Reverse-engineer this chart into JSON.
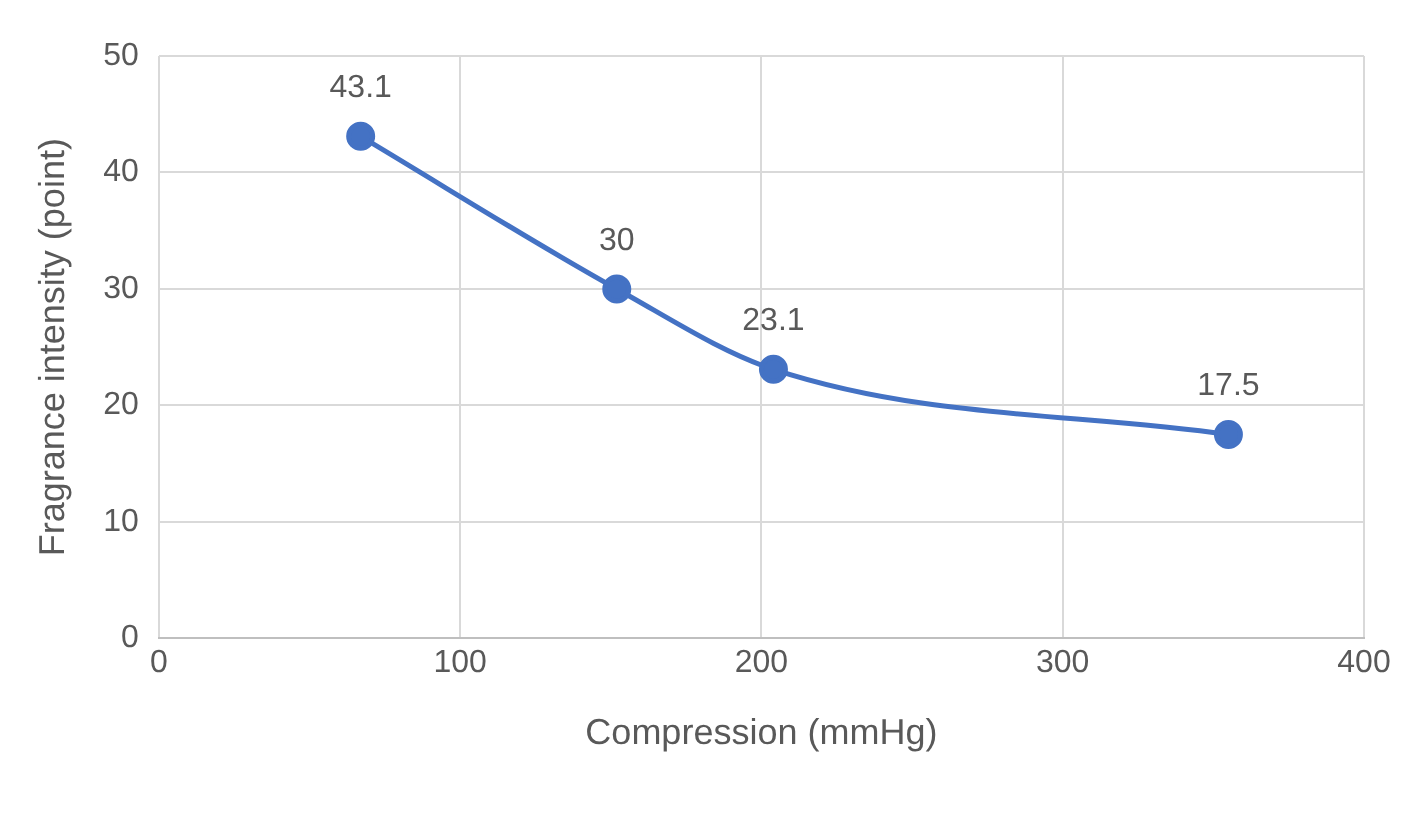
{
  "chart_data": {
    "type": "line",
    "xlabel": "Compression (mmHg)",
    "ylabel": "Fragrance intensity (point)",
    "x": [
      67,
      152,
      204,
      355
    ],
    "series": [
      {
        "color": "#4472c4",
        "values": [
          43.1,
          30,
          23.1,
          17.5
        ]
      }
    ],
    "xlim": [
      0,
      400
    ],
    "xticks": [
      0,
      100,
      200,
      300,
      400
    ],
    "ylim": [
      0,
      50
    ],
    "yticks": [
      0,
      10,
      20,
      30,
      40,
      50
    ],
    "grid": true,
    "marker": "circle",
    "line_style": "solid",
    "data_labels": true,
    "legend": false
  }
}
